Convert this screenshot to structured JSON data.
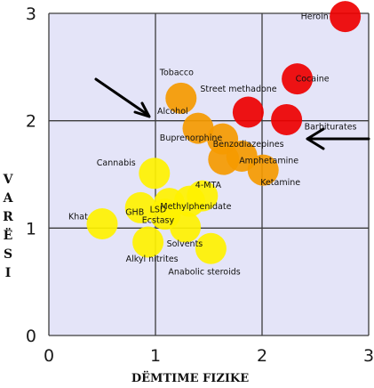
{
  "chart_data": {
    "type": "scatter",
    "title": "",
    "xlabel": "DËMTIME FIZIKE",
    "ylabel": "VARËSI",
    "xlim": [
      0,
      3
    ],
    "ylim": [
      0,
      3
    ],
    "xticks": [
      "0",
      "1",
      "2",
      "3"
    ],
    "yticks": [
      "0",
      "1",
      "2",
      "3"
    ],
    "grid": true,
    "legend": "none",
    "colors": {
      "plot_bg": "#E4E4F8",
      "grid": "#3c3c3c",
      "red": "#EE0000",
      "orange": "#F59A00",
      "yellow": "#FFF200",
      "arrow": "#000000"
    },
    "points": [
      {
        "label": "Heroin",
        "x": 2.78,
        "y": 2.97,
        "color": "red"
      },
      {
        "label": "Cocaine",
        "x": 2.33,
        "y": 2.39,
        "color": "red"
      },
      {
        "label": "Street methadone",
        "x": 1.87,
        "y": 2.08,
        "color": "red"
      },
      {
        "label": "Barbiturates",
        "x": 2.23,
        "y": 2.01,
        "color": "red"
      },
      {
        "label": "Tobacco",
        "x": 1.24,
        "y": 2.21,
        "color": "orange"
      },
      {
        "label": "Alcohol",
        "x": 1.4,
        "y": 1.93,
        "color": "orange"
      },
      {
        "label": "Benzodiazepines",
        "x": 1.63,
        "y": 1.83,
        "color": "orange"
      },
      {
        "label": "Buprenorphine",
        "x": 1.64,
        "y": 1.64,
        "color": "orange"
      },
      {
        "label": "Amphetamine",
        "x": 1.81,
        "y": 1.67,
        "color": "orange"
      },
      {
        "label": "Ketamine",
        "x": 2.01,
        "y": 1.54,
        "color": "orange"
      },
      {
        "label": "Cannabis",
        "x": 0.99,
        "y": 1.51,
        "color": "yellow"
      },
      {
        "label": "4-MTA",
        "x": 1.44,
        "y": 1.3,
        "color": "yellow"
      },
      {
        "label": "LSD",
        "x": 1.13,
        "y": 1.23,
        "color": "yellow"
      },
      {
        "label": "Methylphenidate",
        "x": 1.32,
        "y": 1.25,
        "color": "yellow"
      },
      {
        "label": "GHB",
        "x": 0.86,
        "y": 1.19,
        "color": "yellow"
      },
      {
        "label": "Ecstasy",
        "x": 1.09,
        "y": 1.13,
        "color": "yellow"
      },
      {
        "label": "Khat",
        "x": 0.5,
        "y": 1.04,
        "color": "yellow"
      },
      {
        "label": "Solvents",
        "x": 1.28,
        "y": 1.01,
        "color": "yellow"
      },
      {
        "label": "Alkyl nitrites",
        "x": 0.93,
        "y": 0.87,
        "color": "yellow"
      },
      {
        "label": "Anabolic steroids",
        "x": 1.52,
        "y": 0.81,
        "color": "yellow"
      }
    ]
  }
}
